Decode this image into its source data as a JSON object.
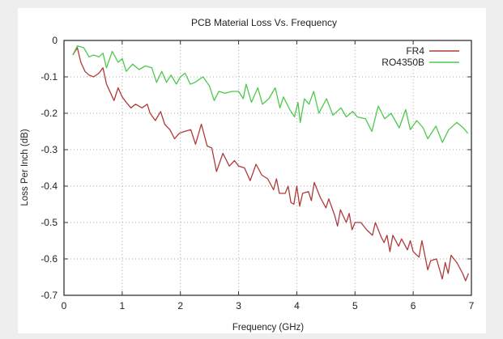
{
  "chart_data": {
    "type": "line",
    "title": "PCB Material Loss Vs. Frequency",
    "xlabel": "Frequency (GHz)",
    "ylabel": "Loss Per Inch (dB)",
    "xlim": [
      0,
      7
    ],
    "ylim": [
      -0.7,
      0
    ],
    "xticks": [
      "0",
      "1",
      "2",
      "3",
      "4",
      "5",
      "6",
      "7"
    ],
    "yticks": [
      "0",
      "-0.1",
      "-0.2",
      "-0.3",
      "-0.4",
      "-0.5",
      "-0.6",
      "-0.7"
    ],
    "grid": true,
    "legend_position": "top-right",
    "series": [
      {
        "name": "FR4",
        "color": "#b03a3a",
        "x": [
          0.15,
          0.23,
          0.29,
          0.36,
          0.43,
          0.51,
          0.6,
          0.67,
          0.73,
          0.86,
          0.93,
          1.0,
          1.07,
          1.15,
          1.23,
          1.34,
          1.43,
          1.48,
          1.57,
          1.66,
          1.73,
          1.82,
          1.9,
          1.98,
          2.07,
          2.18,
          2.26,
          2.36,
          2.46,
          2.54,
          2.62,
          2.73,
          2.84,
          2.93,
          3.0,
          3.1,
          3.2,
          3.3,
          3.4,
          3.5,
          3.6,
          3.65,
          3.7,
          3.8,
          3.85,
          3.9,
          3.95,
          4.0,
          4.05,
          4.1,
          4.2,
          4.25,
          4.3,
          4.4,
          4.5,
          4.55,
          4.65,
          4.7,
          4.75,
          4.85,
          4.9,
          4.95,
          5.0,
          5.1,
          5.2,
          5.3,
          5.35,
          5.45,
          5.5,
          5.55,
          5.6,
          5.65,
          5.75,
          5.8,
          5.9,
          5.95,
          6.0,
          6.1,
          6.15,
          6.25,
          6.3,
          6.4,
          6.5,
          6.55,
          6.6,
          6.65,
          6.75,
          6.85,
          6.9,
          6.95
        ],
        "y": [
          -0.04,
          -0.02,
          -0.06,
          -0.085,
          -0.095,
          -0.1,
          -0.09,
          -0.075,
          -0.12,
          -0.165,
          -0.13,
          -0.155,
          -0.17,
          -0.185,
          -0.175,
          -0.185,
          -0.175,
          -0.2,
          -0.22,
          -0.195,
          -0.23,
          -0.245,
          -0.27,
          -0.255,
          -0.25,
          -0.245,
          -0.285,
          -0.23,
          -0.29,
          -0.295,
          -0.36,
          -0.31,
          -0.345,
          -0.33,
          -0.345,
          -0.35,
          -0.385,
          -0.34,
          -0.37,
          -0.38,
          -0.41,
          -0.38,
          -0.42,
          -0.42,
          -0.4,
          -0.445,
          -0.45,
          -0.4,
          -0.455,
          -0.42,
          -0.415,
          -0.44,
          -0.39,
          -0.43,
          -0.46,
          -0.435,
          -0.48,
          -0.51,
          -0.465,
          -0.5,
          -0.475,
          -0.52,
          -0.5,
          -0.5,
          -0.52,
          -0.535,
          -0.5,
          -0.54,
          -0.555,
          -0.535,
          -0.58,
          -0.535,
          -0.565,
          -0.545,
          -0.575,
          -0.55,
          -0.58,
          -0.595,
          -0.55,
          -0.63,
          -0.605,
          -0.6,
          -0.655,
          -0.61,
          -0.64,
          -0.59,
          -0.61,
          -0.64,
          -0.66,
          -0.64
        ]
      },
      {
        "name": "RO4350B",
        "color": "#4cc94c",
        "x": [
          0.15,
          0.23,
          0.34,
          0.43,
          0.51,
          0.6,
          0.67,
          0.73,
          0.83,
          0.93,
          1.0,
          1.07,
          1.18,
          1.29,
          1.4,
          1.51,
          1.59,
          1.68,
          1.76,
          1.84,
          1.93,
          2.0,
          2.08,
          2.17,
          2.25,
          2.39,
          2.5,
          2.58,
          2.66,
          2.77,
          2.88,
          3.0,
          3.08,
          3.13,
          3.22,
          3.33,
          3.41,
          3.52,
          3.63,
          3.71,
          3.77,
          3.88,
          3.96,
          4.02,
          4.06,
          4.13,
          4.21,
          4.29,
          4.38,
          4.51,
          4.62,
          4.76,
          4.85,
          4.96,
          5.04,
          5.18,
          5.29,
          5.4,
          5.51,
          5.62,
          5.76,
          5.87,
          5.95,
          6.06,
          6.17,
          6.25,
          6.39,
          6.5,
          6.61,
          6.75,
          6.86,
          6.94
        ],
        "y": [
          -0.04,
          -0.015,
          -0.02,
          -0.045,
          -0.04,
          -0.045,
          -0.035,
          -0.075,
          -0.03,
          -0.06,
          -0.05,
          -0.085,
          -0.065,
          -0.08,
          -0.07,
          -0.075,
          -0.115,
          -0.085,
          -0.115,
          -0.095,
          -0.12,
          -0.1,
          -0.09,
          -0.12,
          -0.115,
          -0.1,
          -0.125,
          -0.165,
          -0.14,
          -0.145,
          -0.14,
          -0.14,
          -0.16,
          -0.12,
          -0.17,
          -0.13,
          -0.175,
          -0.16,
          -0.13,
          -0.185,
          -0.155,
          -0.19,
          -0.21,
          -0.17,
          -0.225,
          -0.16,
          -0.175,
          -0.14,
          -0.2,
          -0.16,
          -0.205,
          -0.185,
          -0.21,
          -0.195,
          -0.21,
          -0.215,
          -0.25,
          -0.18,
          -0.215,
          -0.2,
          -0.24,
          -0.19,
          -0.245,
          -0.22,
          -0.24,
          -0.27,
          -0.235,
          -0.28,
          -0.245,
          -0.225,
          -0.24,
          -0.255
        ]
      }
    ]
  }
}
